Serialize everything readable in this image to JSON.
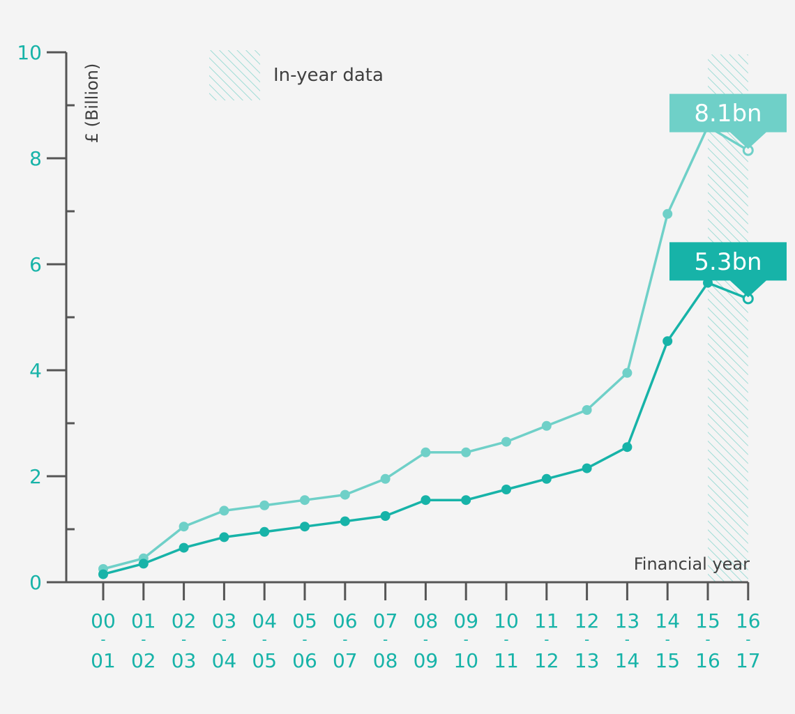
{
  "chart_data": {
    "type": "line",
    "ylabel": "£ (Billion)",
    "xlabel": "Financial year",
    "ylim": [
      0,
      10
    ],
    "yticks": [
      0,
      2,
      4,
      6,
      8,
      10
    ],
    "categories": [
      {
        "top": "00",
        "bottom": "01"
      },
      {
        "top": "01",
        "bottom": "02"
      },
      {
        "top": "02",
        "bottom": "03"
      },
      {
        "top": "03",
        "bottom": "04"
      },
      {
        "top": "04",
        "bottom": "05"
      },
      {
        "top": "05",
        "bottom": "06"
      },
      {
        "top": "06",
        "bottom": "07"
      },
      {
        "top": "07",
        "bottom": "08"
      },
      {
        "top": "08",
        "bottom": "09"
      },
      {
        "top": "09",
        "bottom": "10"
      },
      {
        "top": "10",
        "bottom": "11"
      },
      {
        "top": "11",
        "bottom": "12"
      },
      {
        "top": "12",
        "bottom": "13"
      },
      {
        "top": "13",
        "bottom": "14"
      },
      {
        "top": "14",
        "bottom": "15"
      },
      {
        "top": "15",
        "bottom": "16"
      },
      {
        "top": "16",
        "bottom": "17"
      }
    ],
    "category_separator": "-",
    "series": [
      {
        "color": "#6fd0c8",
        "values": [
          0.25,
          0.45,
          1.05,
          1.35,
          1.45,
          1.55,
          1.65,
          1.95,
          2.45,
          2.45,
          2.65,
          2.95,
          3.25,
          3.95,
          6.95,
          8.6,
          8.15
        ],
        "callout": "8.1bn"
      },
      {
        "color": "#17b3a8",
        "values": [
          0.15,
          0.35,
          0.65,
          0.85,
          0.95,
          1.05,
          1.15,
          1.25,
          1.55,
          1.55,
          1.75,
          1.95,
          2.15,
          2.55,
          4.55,
          5.65,
          5.35
        ],
        "callout": "5.3bn"
      }
    ],
    "in_year_index": 16,
    "legend": {
      "label": "In-year data",
      "placement": "top-left"
    },
    "grid": false
  }
}
